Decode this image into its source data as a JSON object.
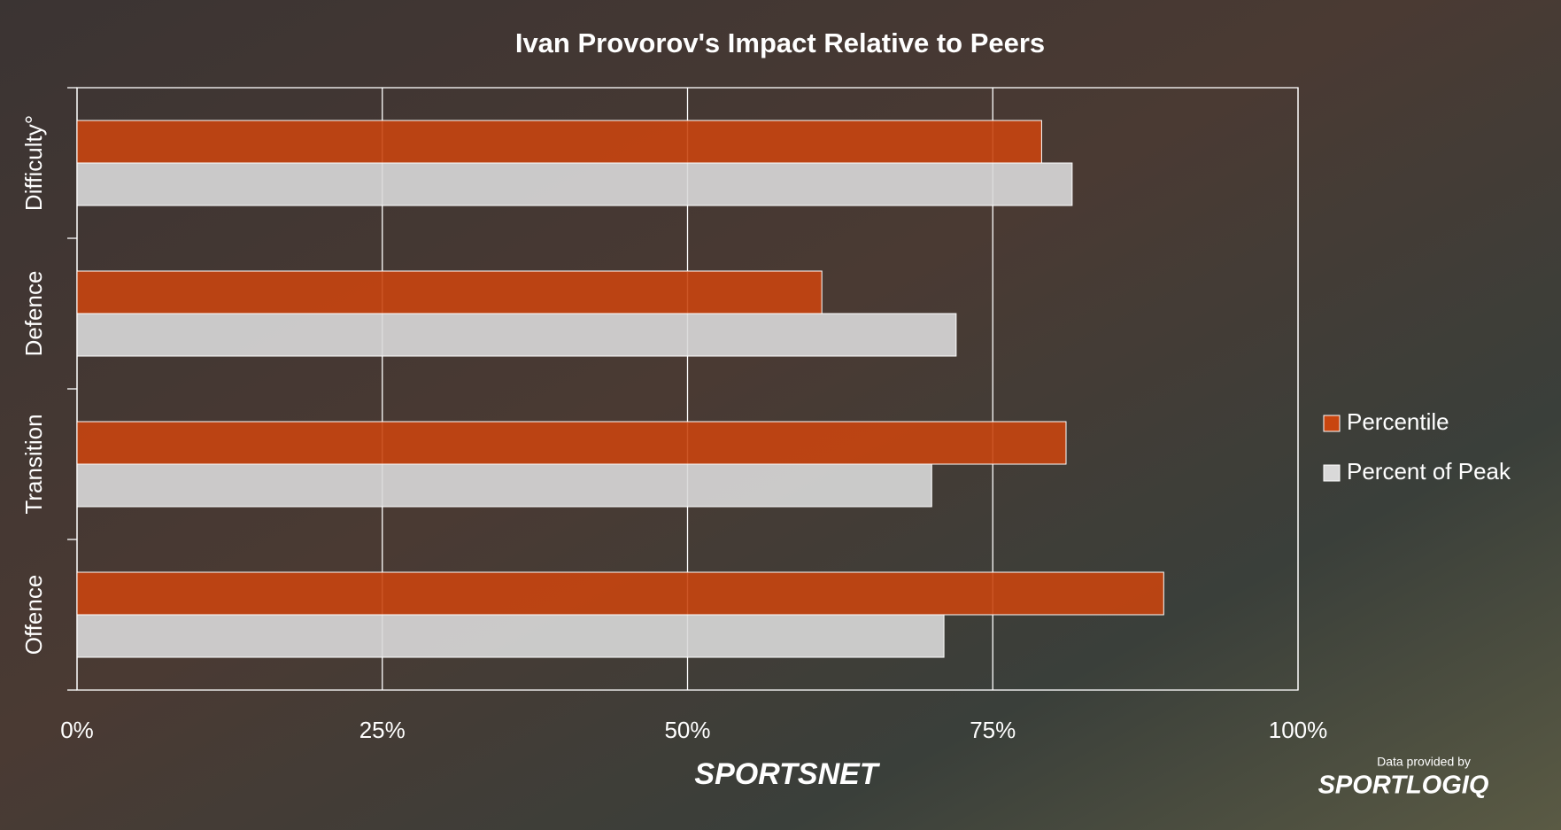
{
  "chart_data": {
    "type": "hbar",
    "title": "Ivan Provorov's Impact Relative to Peers",
    "categories": [
      "Difficulty°",
      "Defence",
      "Transition",
      "Offence"
    ],
    "series": [
      {
        "name": "Percentile",
        "color": "#c8450f",
        "values": [
          79,
          61,
          81,
          89
        ]
      },
      {
        "name": "Percent of Peak",
        "color": "#d9d9d9",
        "values": [
          81.5,
          72,
          70,
          71
        ]
      }
    ],
    "xlim": [
      0,
      100
    ],
    "xticks": [
      {
        "value": 0,
        "label": "0%"
      },
      {
        "value": 25,
        "label": "25%"
      },
      {
        "value": 50,
        "label": "50%"
      },
      {
        "value": 75,
        "label": "75%"
      },
      {
        "value": 100,
        "label": "100%"
      }
    ],
    "grid": true,
    "legend": "right"
  },
  "branding": {
    "network": "SPORTSNET",
    "credit": "Data provided by",
    "provider": "SPORTLOGIQ"
  }
}
